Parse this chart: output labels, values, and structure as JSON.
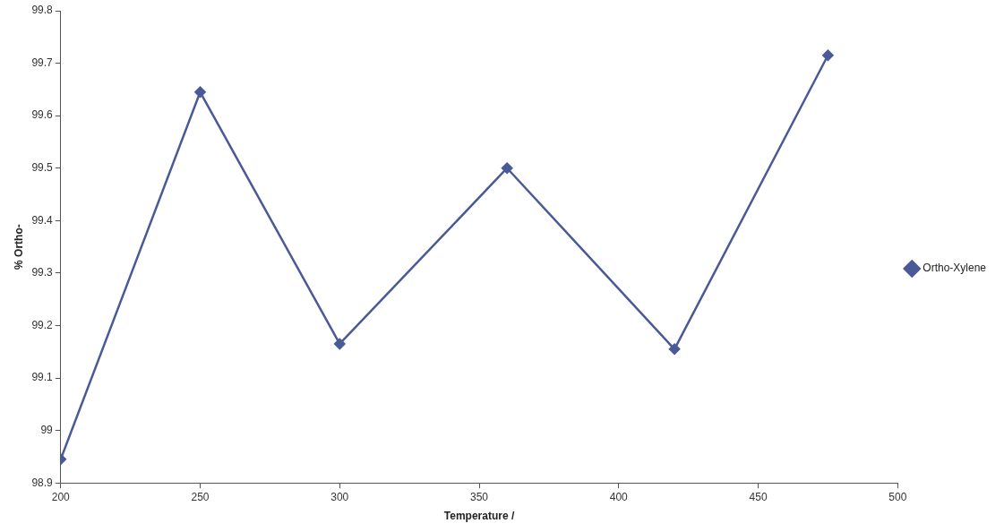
{
  "chart_data": {
    "type": "line",
    "xlabel": "Temperature /",
    "ylabel": "% Ortho-",
    "x": [
      200,
      250,
      300,
      360,
      420,
      475
    ],
    "series": [
      {
        "name": "Ortho-Xylene",
        "color": "#4a5a96",
        "values": [
          98.945,
          99.645,
          99.165,
          99.5,
          99.155,
          99.715
        ]
      }
    ],
    "xlim": [
      200,
      500
    ],
    "xticks": [
      200,
      250,
      300,
      350,
      400,
      450,
      500
    ],
    "ylim": [
      98.9,
      99.8
    ],
    "yticks": [
      98.9,
      99,
      99.1,
      99.2,
      99.3,
      99.4,
      99.5,
      99.6,
      99.7,
      99.8
    ],
    "grid": false,
    "legend": "right",
    "marker": "diamond",
    "line_style": "solid"
  }
}
